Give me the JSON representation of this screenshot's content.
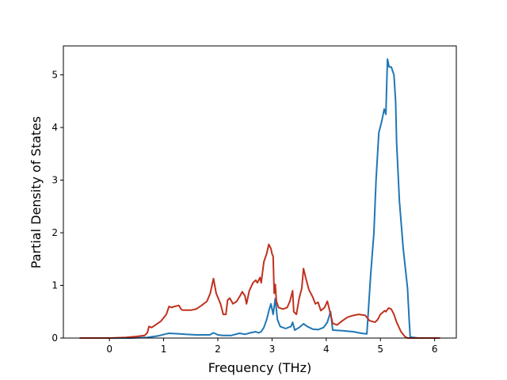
{
  "chart_data": {
    "type": "line",
    "title": "",
    "xlabel": "Frequency (THz)",
    "ylabel": "Partial Density of States",
    "xlim": [
      -0.85,
      6.4
    ],
    "ylim": [
      0,
      5.55
    ],
    "xticks": [
      "0",
      "1",
      "2",
      "3",
      "4",
      "5",
      "6"
    ],
    "yticks": [
      "0",
      "1",
      "2",
      "3",
      "4",
      "5"
    ],
    "grid": false,
    "legend": "none",
    "series": [
      {
        "color": "#1f77b4",
        "points": [
          [
            -0.55,
            0.0
          ],
          [
            0.0,
            0.0
          ],
          [
            0.4,
            0.0
          ],
          [
            0.7,
            0.01
          ],
          [
            0.9,
            0.04
          ],
          [
            1.05,
            0.08
          ],
          [
            1.1,
            0.09
          ],
          [
            1.3,
            0.08
          ],
          [
            1.4,
            0.07
          ],
          [
            1.6,
            0.06
          ],
          [
            1.85,
            0.06
          ],
          [
            1.92,
            0.1
          ],
          [
            2.0,
            0.06
          ],
          [
            2.1,
            0.05
          ],
          [
            2.25,
            0.05
          ],
          [
            2.4,
            0.09
          ],
          [
            2.5,
            0.07
          ],
          [
            2.6,
            0.1
          ],
          [
            2.7,
            0.12
          ],
          [
            2.75,
            0.1
          ],
          [
            2.8,
            0.12
          ],
          [
            2.85,
            0.2
          ],
          [
            2.9,
            0.35
          ],
          [
            2.95,
            0.55
          ],
          [
            2.98,
            0.65
          ],
          [
            3.02,
            0.45
          ],
          [
            3.06,
            0.75
          ],
          [
            3.1,
            0.35
          ],
          [
            3.15,
            0.22
          ],
          [
            3.25,
            0.18
          ],
          [
            3.35,
            0.22
          ],
          [
            3.38,
            0.3
          ],
          [
            3.42,
            0.15
          ],
          [
            3.5,
            0.2
          ],
          [
            3.58,
            0.27
          ],
          [
            3.65,
            0.22
          ],
          [
            3.75,
            0.17
          ],
          [
            3.85,
            0.16
          ],
          [
            3.95,
            0.2
          ],
          [
            4.02,
            0.3
          ],
          [
            4.08,
            0.5
          ],
          [
            4.12,
            0.15
          ],
          [
            4.3,
            0.14
          ],
          [
            4.5,
            0.12
          ],
          [
            4.65,
            0.09
          ],
          [
            4.75,
            0.08
          ],
          [
            4.77,
            0.4
          ],
          [
            4.82,
            1.2
          ],
          [
            4.88,
            2.0
          ],
          [
            4.92,
            3.0
          ],
          [
            4.97,
            3.9
          ],
          [
            5.02,
            4.1
          ],
          [
            5.07,
            4.35
          ],
          [
            5.1,
            4.25
          ],
          [
            5.13,
            5.3
          ],
          [
            5.16,
            5.15
          ],
          [
            5.2,
            5.15
          ],
          [
            5.25,
            5.0
          ],
          [
            5.28,
            4.5
          ],
          [
            5.3,
            3.7
          ],
          [
            5.35,
            2.6
          ],
          [
            5.42,
            1.7
          ],
          [
            5.5,
            0.95
          ],
          [
            5.53,
            0.35
          ],
          [
            5.55,
            0.02
          ],
          [
            5.7,
            0.0
          ],
          [
            6.05,
            0.0
          ]
        ]
      },
      {
        "color": "#c0311f",
        "points": [
          [
            -0.55,
            0.0
          ],
          [
            0.0,
            0.0
          ],
          [
            0.3,
            0.01
          ],
          [
            0.5,
            0.03
          ],
          [
            0.65,
            0.05
          ],
          [
            0.7,
            0.1
          ],
          [
            0.73,
            0.22
          ],
          [
            0.78,
            0.2
          ],
          [
            0.85,
            0.25
          ],
          [
            0.95,
            0.32
          ],
          [
            1.05,
            0.45
          ],
          [
            1.1,
            0.6
          ],
          [
            1.15,
            0.58
          ],
          [
            1.2,
            0.6
          ],
          [
            1.28,
            0.62
          ],
          [
            1.32,
            0.55
          ],
          [
            1.35,
            0.53
          ],
          [
            1.5,
            0.53
          ],
          [
            1.6,
            0.55
          ],
          [
            1.7,
            0.62
          ],
          [
            1.8,
            0.7
          ],
          [
            1.86,
            0.85
          ],
          [
            1.92,
            1.13
          ],
          [
            1.97,
            0.85
          ],
          [
            2.05,
            0.65
          ],
          [
            2.1,
            0.45
          ],
          [
            2.15,
            0.45
          ],
          [
            2.18,
            0.72
          ],
          [
            2.22,
            0.76
          ],
          [
            2.28,
            0.65
          ],
          [
            2.35,
            0.7
          ],
          [
            2.42,
            0.82
          ],
          [
            2.45,
            0.88
          ],
          [
            2.5,
            0.8
          ],
          [
            2.53,
            0.65
          ],
          [
            2.58,
            0.9
          ],
          [
            2.65,
            1.05
          ],
          [
            2.7,
            1.1
          ],
          [
            2.73,
            1.05
          ],
          [
            2.78,
            1.15
          ],
          [
            2.8,
            1.05
          ],
          [
            2.85,
            1.45
          ],
          [
            2.9,
            1.6
          ],
          [
            2.94,
            1.78
          ],
          [
            2.98,
            1.7
          ],
          [
            3.0,
            1.6
          ],
          [
            3.02,
            1.55
          ],
          [
            3.04,
            0.85
          ],
          [
            3.06,
            1.02
          ],
          [
            3.08,
            0.7
          ],
          [
            3.12,
            0.58
          ],
          [
            3.2,
            0.55
          ],
          [
            3.28,
            0.58
          ],
          [
            3.33,
            0.7
          ],
          [
            3.38,
            0.9
          ],
          [
            3.4,
            0.5
          ],
          [
            3.45,
            0.45
          ],
          [
            3.5,
            0.75
          ],
          [
            3.55,
            0.95
          ],
          [
            3.58,
            1.32
          ],
          [
            3.62,
            1.15
          ],
          [
            3.68,
            0.92
          ],
          [
            3.75,
            0.78
          ],
          [
            3.8,
            0.65
          ],
          [
            3.85,
            0.68
          ],
          [
            3.9,
            0.52
          ],
          [
            3.97,
            0.58
          ],
          [
            4.02,
            0.7
          ],
          [
            4.08,
            0.45
          ],
          [
            4.12,
            0.28
          ],
          [
            4.2,
            0.25
          ],
          [
            4.3,
            0.33
          ],
          [
            4.4,
            0.4
          ],
          [
            4.5,
            0.43
          ],
          [
            4.6,
            0.45
          ],
          [
            4.72,
            0.43
          ],
          [
            4.8,
            0.33
          ],
          [
            4.9,
            0.3
          ],
          [
            4.95,
            0.35
          ],
          [
            5.0,
            0.45
          ],
          [
            5.08,
            0.52
          ],
          [
            5.1,
            0.5
          ],
          [
            5.15,
            0.57
          ],
          [
            5.2,
            0.55
          ],
          [
            5.25,
            0.45
          ],
          [
            5.3,
            0.3
          ],
          [
            5.38,
            0.12
          ],
          [
            5.45,
            0.03
          ],
          [
            5.5,
            0.0
          ],
          [
            6.1,
            0.0
          ]
        ]
      }
    ]
  }
}
